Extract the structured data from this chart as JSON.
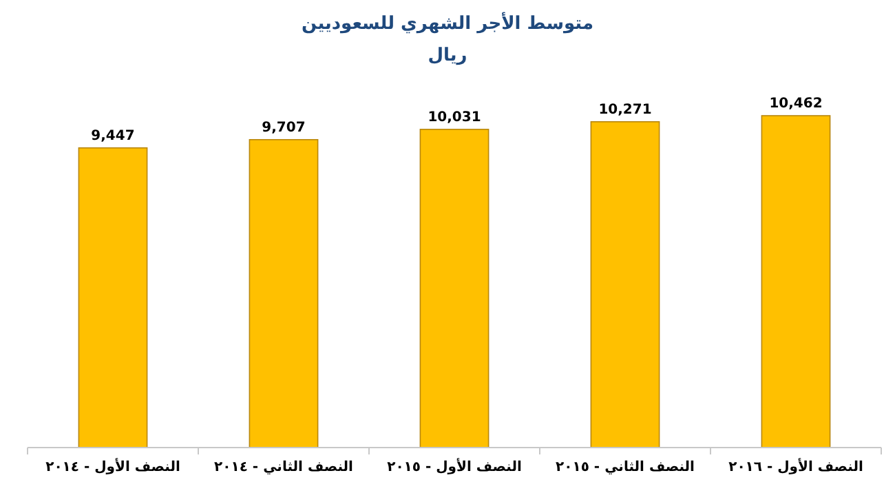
{
  "chart_data": {
    "type": "bar",
    "title": "متوسط الأجر الشهري للسعوديين",
    "subtitle": "ريال",
    "categories": [
      "النصف الأول - ٢٠١٤",
      "النصف الثاني - ٢٠١٤",
      "النصف الأول - ٢٠١٥",
      "النصف الثاني - ٢٠١٥",
      "النصف الأول - ٢٠١٦"
    ],
    "values": [
      9447,
      9707,
      10031,
      10271,
      10462
    ],
    "value_labels": [
      "9,447",
      "9,707",
      "10,031",
      "10,271",
      "10,462"
    ],
    "color": "#ffc000"
  }
}
